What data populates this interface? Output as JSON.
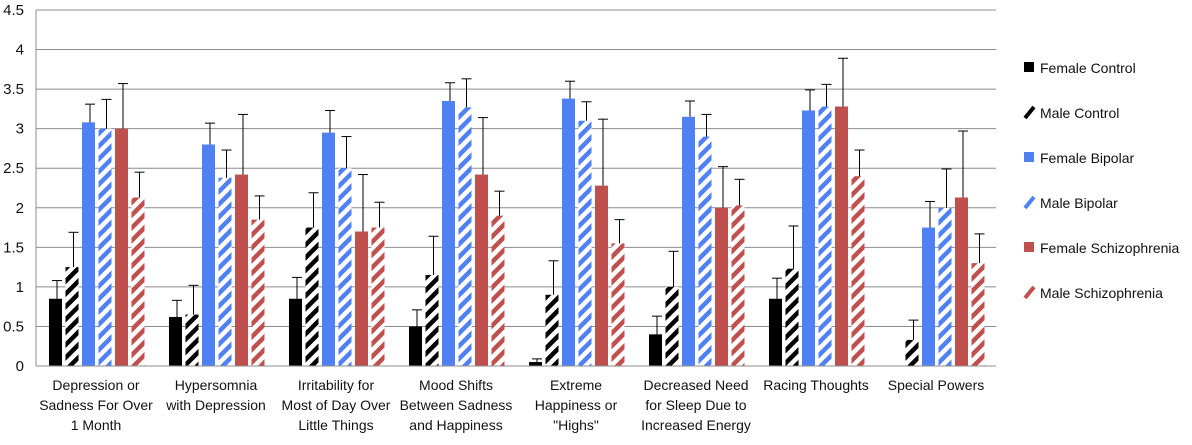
{
  "chart_data": {
    "type": "bar",
    "title": "",
    "xlabel": "",
    "ylabel": "",
    "ylim": [
      0,
      4.5
    ],
    "ytick_step": 0.5,
    "yticks": [
      "0",
      "0.5",
      "1",
      "1.5",
      "2",
      "2.5",
      "3",
      "3.5",
      "4",
      "4.5"
    ],
    "grid": true,
    "legend_position": "right",
    "categories": [
      [
        "Depression or",
        "Sadness For Over",
        "1 Month"
      ],
      [
        "Hypersomnia",
        "with Depression"
      ],
      [
        "Irritability for",
        "Most of Day Over",
        "Little Things"
      ],
      [
        "Mood Shifts",
        "Between Sadness",
        "and Happiness"
      ],
      [
        "Extreme",
        "Happiness or",
        "\"Highs\""
      ],
      [
        "Decreased Need",
        "for Sleep Due to",
        "Increased Energy"
      ],
      [
        "Racing Thoughts"
      ],
      [
        "Special Powers"
      ]
    ],
    "series": [
      {
        "name": "Female Control",
        "color": "#000000",
        "pattern": "solid",
        "values": [
          0.85,
          0.62,
          0.85,
          0.5,
          0.05,
          0.4,
          0.85,
          0.0
        ],
        "errors": [
          0.23,
          0.21,
          0.27,
          0.21,
          0.04,
          0.23,
          0.26,
          0.0
        ]
      },
      {
        "name": "Male Control",
        "color": "#000000",
        "pattern": "hatched",
        "values": [
          1.25,
          0.65,
          1.75,
          1.15,
          0.9,
          1.0,
          1.23,
          0.33
        ],
        "errors": [
          0.44,
          0.37,
          0.44,
          0.49,
          0.43,
          0.45,
          0.54,
          0.25
        ]
      },
      {
        "name": "Female Bipolar",
        "color": "#4f81f5",
        "pattern": "solid",
        "values": [
          3.08,
          2.8,
          2.95,
          3.35,
          3.38,
          3.15,
          3.23,
          1.75
        ],
        "errors": [
          0.23,
          0.27,
          0.28,
          0.23,
          0.22,
          0.2,
          0.26,
          0.33
        ]
      },
      {
        "name": "Male Bipolar",
        "color": "#4f81f5",
        "pattern": "hatched",
        "values": [
          3.0,
          2.38,
          2.5,
          3.27,
          3.1,
          2.9,
          3.28,
          2.0
        ],
        "errors": [
          0.37,
          0.35,
          0.4,
          0.36,
          0.24,
          0.28,
          0.28,
          0.49
        ]
      },
      {
        "name": "Female Schizophrenia",
        "color": "#c0504d",
        "pattern": "solid",
        "values": [
          3.0,
          2.42,
          1.7,
          2.42,
          2.28,
          2.0,
          3.28,
          2.13
        ],
        "errors": [
          0.57,
          0.76,
          0.72,
          0.72,
          0.84,
          0.52,
          0.61,
          0.84
        ]
      },
      {
        "name": "Male Schizophrenia",
        "color": "#c0504d",
        "pattern": "hatched",
        "values": [
          2.13,
          1.85,
          1.75,
          1.9,
          1.55,
          2.03,
          2.4,
          1.3
        ],
        "errors": [
          0.32,
          0.3,
          0.32,
          0.31,
          0.3,
          0.33,
          0.33,
          0.37
        ]
      }
    ]
  }
}
